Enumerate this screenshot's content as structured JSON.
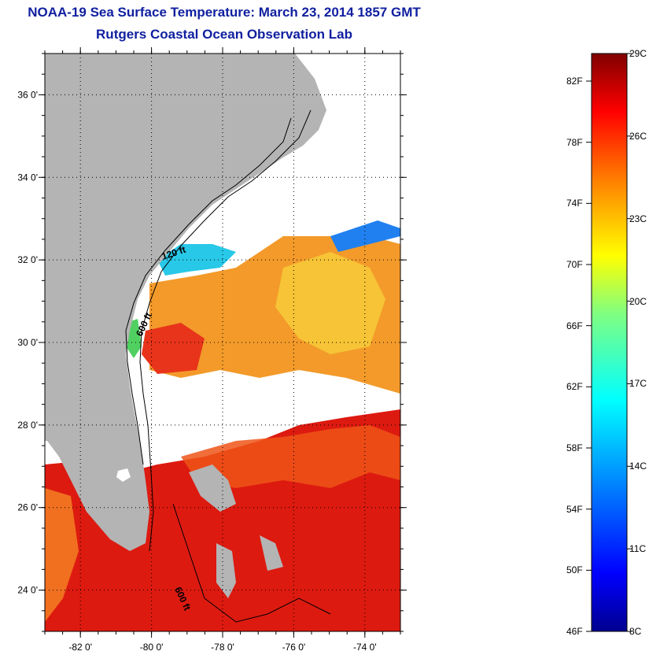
{
  "title": "NOAA-19 Sea Surface Temperature:  March 23, 2014 1857 GMT",
  "subtitle": "Rutgers Coastal Ocean Observation Lab",
  "map": {
    "lat_labels": [
      "36 0'",
      "34 0'",
      "32 0'",
      "30 0'",
      "28 0'",
      "26 0'",
      "24 0'"
    ],
    "lat_values": [
      36,
      34,
      32,
      30,
      28,
      26,
      24
    ],
    "lon_labels": [
      "-82 0'",
      "-80 0'",
      "-78 0'",
      "-76 0'",
      "-74 0'"
    ],
    "lon_values": [
      -82,
      -80,
      -78,
      -76,
      -74
    ],
    "lon_range": [
      -83,
      -73
    ],
    "lat_range": [
      23,
      37
    ],
    "contour_labels": [
      "120 ft",
      "600 ft",
      "600 ft"
    ],
    "colors": {
      "land": "#b0b0b0",
      "cloud": "#ffffff",
      "grid": "#000000"
    }
  },
  "colorbar": {
    "fahrenheit_labels": [
      "82F",
      "78F",
      "74F",
      "70F",
      "66F",
      "62F",
      "58F",
      "54F",
      "50F",
      "46F"
    ],
    "celsius_labels": [
      "29C",
      "26C",
      "23C",
      "20C",
      "17C",
      "14C",
      "11C",
      "8C"
    ],
    "range_c": [
      8,
      29
    ]
  }
}
